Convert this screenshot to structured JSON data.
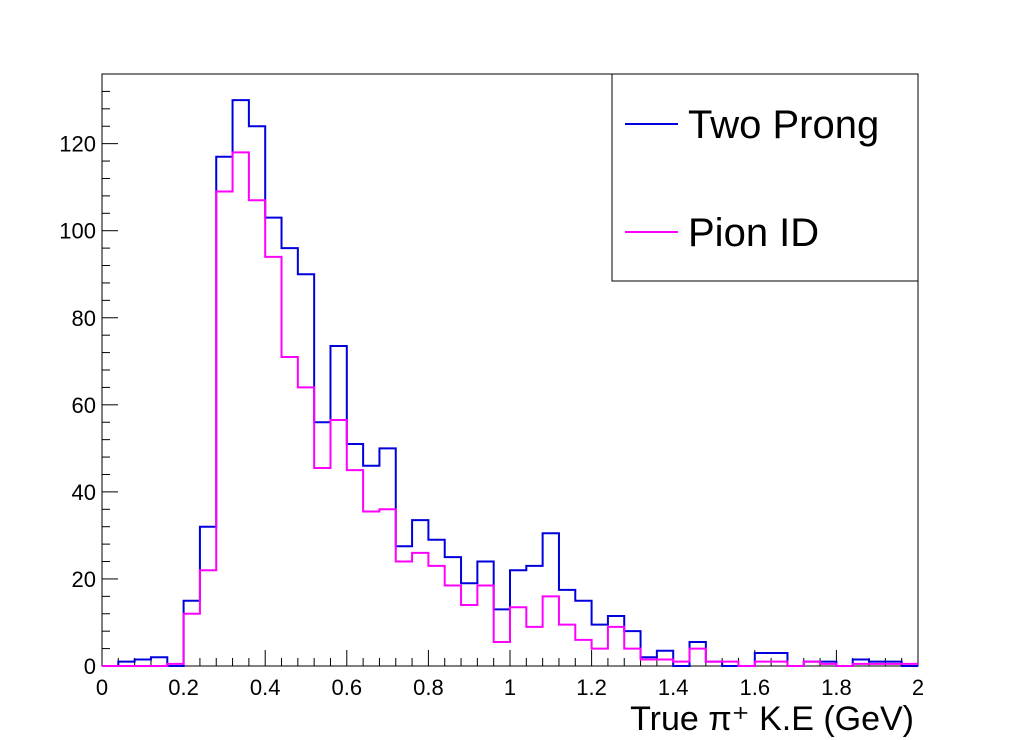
{
  "chart_data": {
    "type": "line",
    "style": "step-histogram",
    "title": "",
    "xlabel": "True π⁺ K.E (GeV)",
    "ylabel": "",
    "xlim": [
      0,
      2
    ],
    "ylim": [
      0,
      136
    ],
    "grid": false,
    "legend_position": "top-right",
    "bin_width": 0.04,
    "x_ticks": [
      {
        "value": 0,
        "label": "0"
      },
      {
        "value": 0.2,
        "label": "0.2"
      },
      {
        "value": 0.4,
        "label": "0.4"
      },
      {
        "value": 0.6,
        "label": "0.6"
      },
      {
        "value": 0.8,
        "label": "0.8"
      },
      {
        "value": 1,
        "label": "1"
      },
      {
        "value": 1.2,
        "label": "1.2"
      },
      {
        "value": 1.4,
        "label": "1.4"
      },
      {
        "value": 1.6,
        "label": "1.6"
      },
      {
        "value": 1.8,
        "label": "1.8"
      },
      {
        "value": 2,
        "label": "2"
      }
    ],
    "y_ticks": [
      {
        "value": 0,
        "label": "0"
      },
      {
        "value": 20,
        "label": "20"
      },
      {
        "value": 40,
        "label": "40"
      },
      {
        "value": 60,
        "label": "60"
      },
      {
        "value": 80,
        "label": "80"
      },
      {
        "value": 100,
        "label": "100"
      },
      {
        "value": 120,
        "label": "120"
      }
    ],
    "series": [
      {
        "name": "Two Prong",
        "color": "#0000dd",
        "values": [
          0,
          1,
          1.5,
          2,
          0,
          15,
          32,
          117,
          130,
          124,
          103,
          96,
          90,
          56,
          73.5,
          51,
          46,
          50,
          27.5,
          33.5,
          29,
          25,
          19,
          24,
          13,
          22,
          23,
          30.5,
          17.5,
          15,
          9.5,
          11.5,
          8,
          2,
          3.5,
          0,
          5.5,
          1,
          0,
          0,
          3,
          3,
          0,
          1,
          1,
          0,
          1.5,
          1,
          1,
          0
        ]
      },
      {
        "name": "Pion ID",
        "color": "#ff00ff",
        "values": [
          0,
          0,
          0,
          0,
          0.5,
          12,
          22,
          109,
          118,
          107,
          94,
          71,
          64,
          45.5,
          56.5,
          45,
          35.5,
          36,
          24,
          26,
          23,
          18.5,
          14,
          18.5,
          5.5,
          13.5,
          9,
          16,
          9.5,
          6,
          4,
          9,
          4,
          1.5,
          1.5,
          1,
          4,
          1,
          1,
          0,
          1,
          1,
          0,
          1,
          0.5,
          0,
          0.5,
          0.5,
          0.5,
          0.5
        ]
      }
    ]
  }
}
